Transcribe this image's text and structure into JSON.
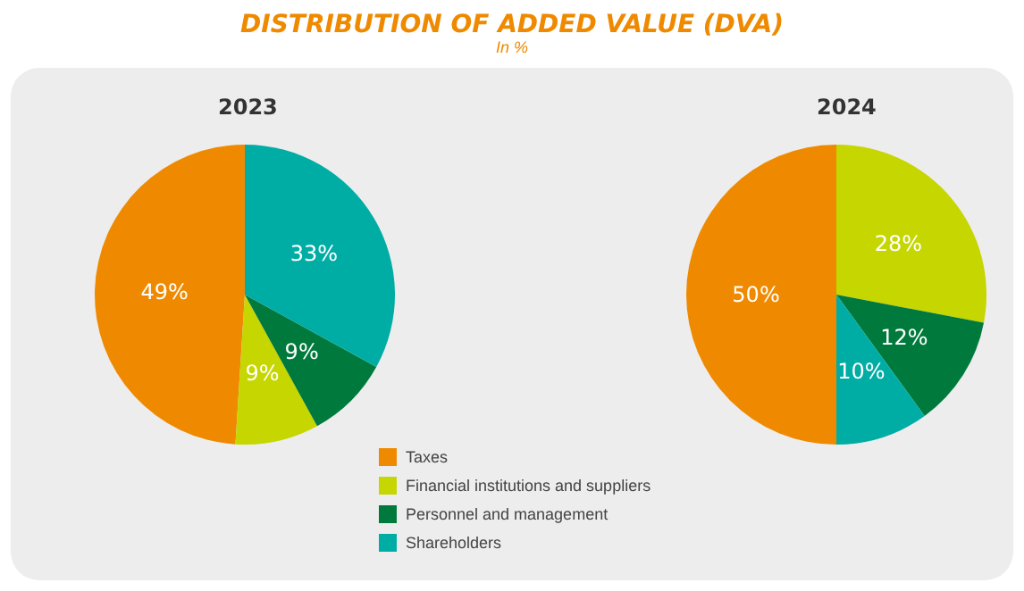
{
  "chart_data": [
    {
      "type": "pie",
      "title": "DISTRIBUTION OF ADDED VALUE (DVA)",
      "subtitle": "In %",
      "annotations": [
        "2023"
      ],
      "categories": [
        null,
        null,
        null,
        null
      ],
      "values": [
        49,
        9,
        9,
        33
      ],
      "value_labels": [
        "49%",
        "9%",
        "9%",
        "33%"
      ],
      "colors": [
        "#ef8a00",
        "#c5d600",
        "#007a3c",
        "#00ada5"
      ],
      "legend": false
    },
    {
      "type": "pie",
      "title": "2024",
      "categories": [
        "Taxes",
        "Financial institutions and suppliers",
        "Personnel and management",
        "Shareholders"
      ],
      "values": [
        50,
        28,
        12,
        10
      ],
      "value_labels": [
        "50%",
        "28%",
        "12%",
        "10%"
      ],
      "colors": [
        "#ef8a00",
        "#c5d600",
        "#007a3c",
        "#00ada5"
      ],
      "legend": "bottom left"
    }
  ]
}
